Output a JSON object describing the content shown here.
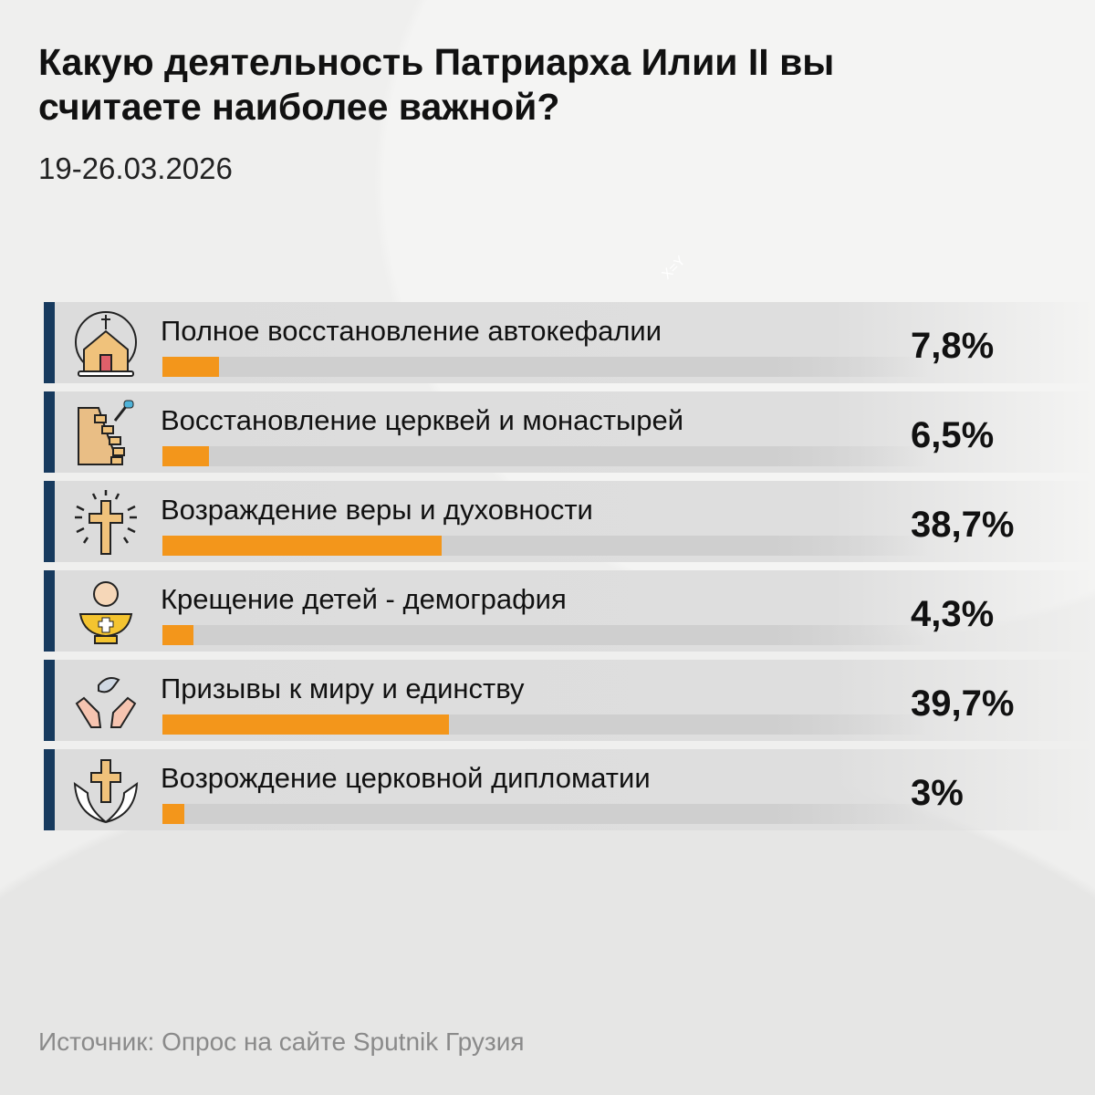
{
  "title": "Какую деятельность Патриарха Илии II вы считаете наиболее важной?",
  "date": "19-26.03.2026",
  "watermark": "X=Y",
  "source": "Источник: Опрос на сайте Sputnik Грузия",
  "colors": {
    "bar": "#f3961b",
    "edge": "#173a5e",
    "track": "#cfcfcf"
  },
  "chart_data": {
    "type": "bar",
    "orientation": "horizontal",
    "categories": [
      "Полное восстановление автокефалии",
      "Восстановление церквей и монастырей",
      "Возраждение веры и духовности",
      "Крещение детей - демография",
      "Призывы к миру и единству",
      "Возрождение церковной дипломатии"
    ],
    "values": [
      7.8,
      6.5,
      38.7,
      4.3,
      39.7,
      3
    ],
    "value_labels": [
      "7,8%",
      "6,5%",
      "38,7%",
      "4,3%",
      "39,7%",
      "3%"
    ],
    "icons": [
      "church-icon",
      "wall-repair-icon",
      "shining-cross-icon",
      "baptism-font-icon",
      "dove-hands-icon",
      "cross-wings-icon"
    ],
    "xlim": [
      0,
      100
    ]
  }
}
